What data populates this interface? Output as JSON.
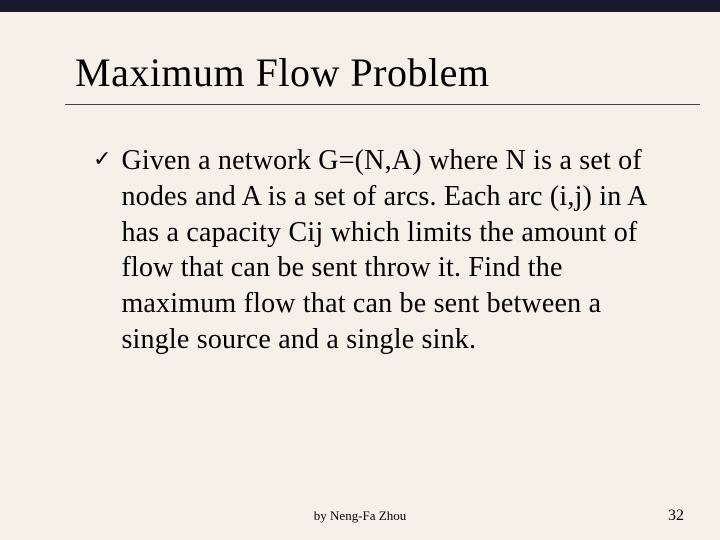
{
  "slide": {
    "background_color": "#f5f0e8",
    "top_bar_color": "#1a1a2e",
    "title": "Maximum Flow Problem",
    "title_fontsize": 40,
    "title_color": "#000000",
    "underline_color": "#444444",
    "bullet_symbol": "✓",
    "bullet_color": "#000000",
    "body_text": "Given a network G=(N,A) where N is a set of nodes and A is a set of arcs. Each arc (i,j) in A has a capacity Cij which limits the amount of flow that can be sent throw it. Find the maximum flow that can be sent between a single source and a single sink.",
    "body_fontsize": 28,
    "body_color": "#000000"
  },
  "footer": {
    "author": "by Neng-Fa Zhou",
    "author_fontsize": 13,
    "page_number": "32",
    "page_fontsize": 16
  }
}
